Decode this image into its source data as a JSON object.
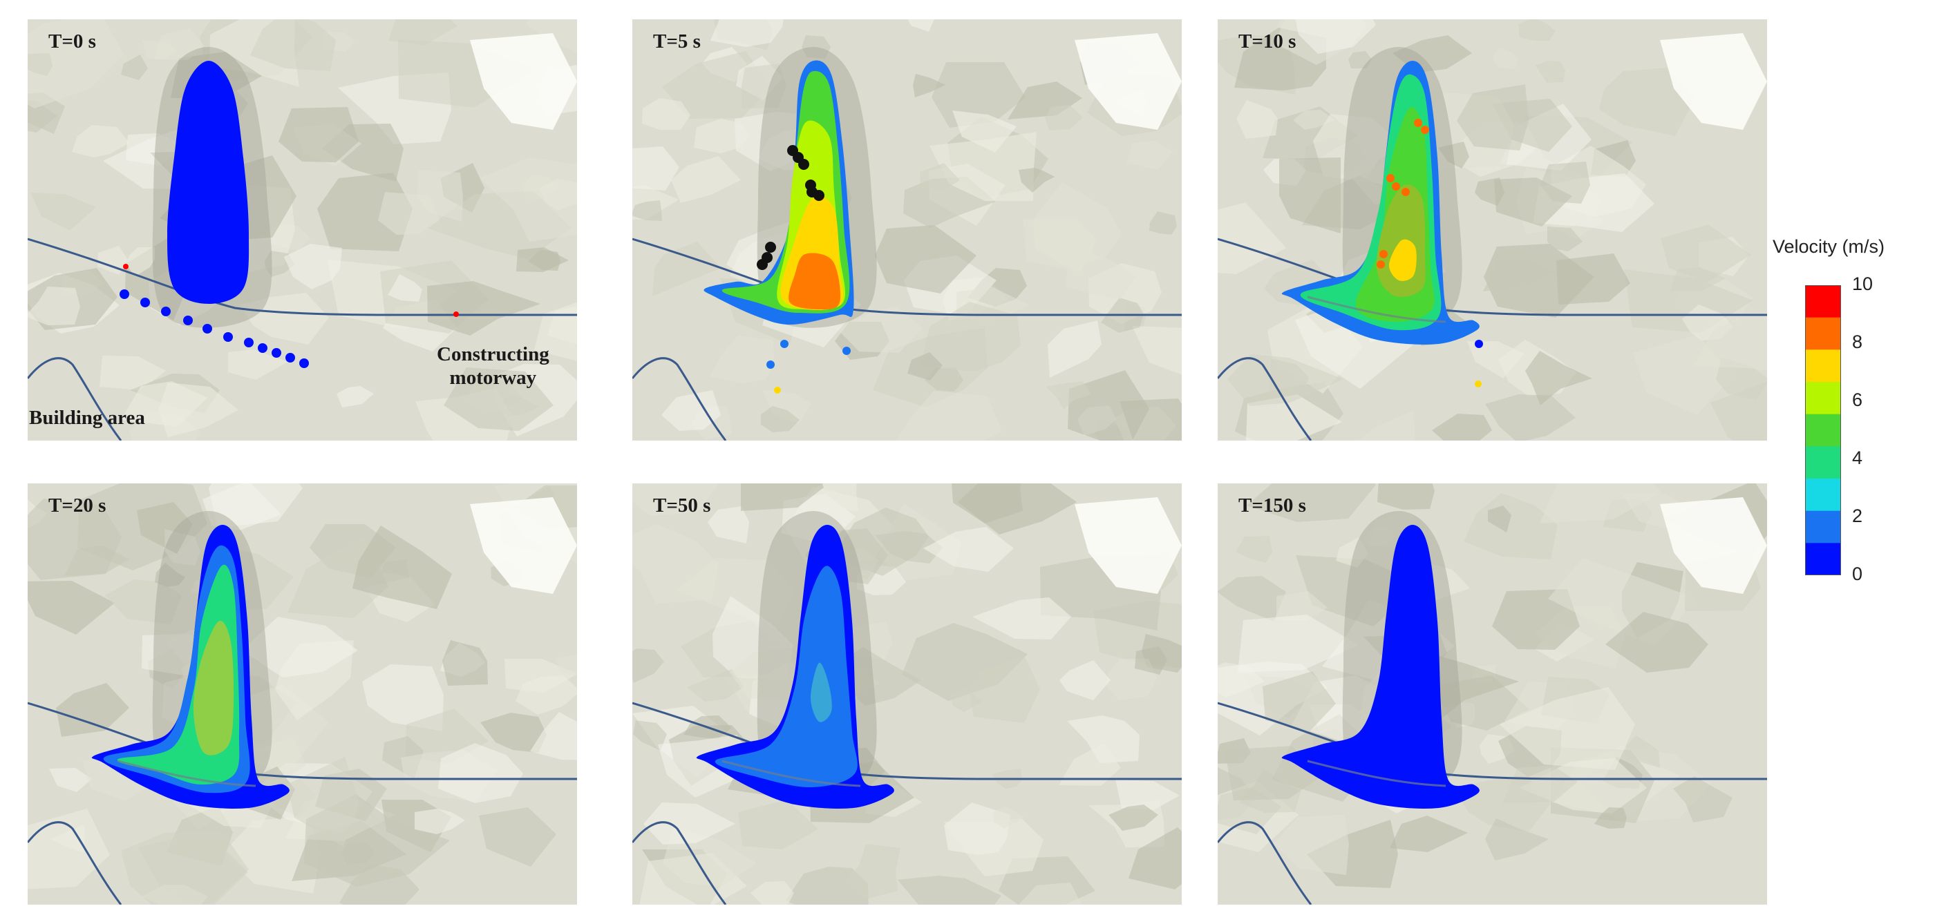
{
  "panels": [
    {
      "label": "T=0 s",
      "stage": 0
    },
    {
      "label": "T=5 s",
      "stage": 1
    },
    {
      "label": "T=10 s",
      "stage": 2
    },
    {
      "label": "T=20 s",
      "stage": 3
    },
    {
      "label": "T=50 s",
      "stage": 4
    },
    {
      "label": "T=150 s",
      "stage": 5
    }
  ],
  "annotations": {
    "building_area": "Building area",
    "motorway_line1": "Constructing",
    "motorway_line2": "motorway"
  },
  "legend": {
    "title": "Velocity (m/s)",
    "ticks": [
      "10",
      "8",
      "6",
      "4",
      "2",
      "0"
    ],
    "colors": [
      "#ff0000",
      "#ff6a00",
      "#ffd800",
      "#b5f500",
      "#4cd633",
      "#1fdb7d",
      "#17d9e6",
      "#1a74f2",
      "#0010ff"
    ]
  }
}
